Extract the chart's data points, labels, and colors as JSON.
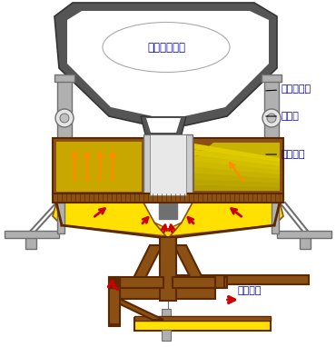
{
  "bg_color": "#ffffff",
  "labels": {
    "feed_box": "石灰石给料箱",
    "limestone_chute": "石灰石溜槽",
    "exhaust_pipe": "排气管",
    "discharge_mech": "卸料机构",
    "kiln_exhaust": "窑炉排气"
  },
  "label_color": "#0000cc",
  "label_fontsize": 8,
  "dark_gray": "#555555",
  "brown": "#8B5013",
  "dark_brown": "#5C2800",
  "yellow": "#FFE000",
  "red_arrow": "#cc0000",
  "orange": "#FF8C00",
  "steel_gray": "#b0b0b0",
  "steel_dark": "#707070",
  "white": "#ffffff"
}
